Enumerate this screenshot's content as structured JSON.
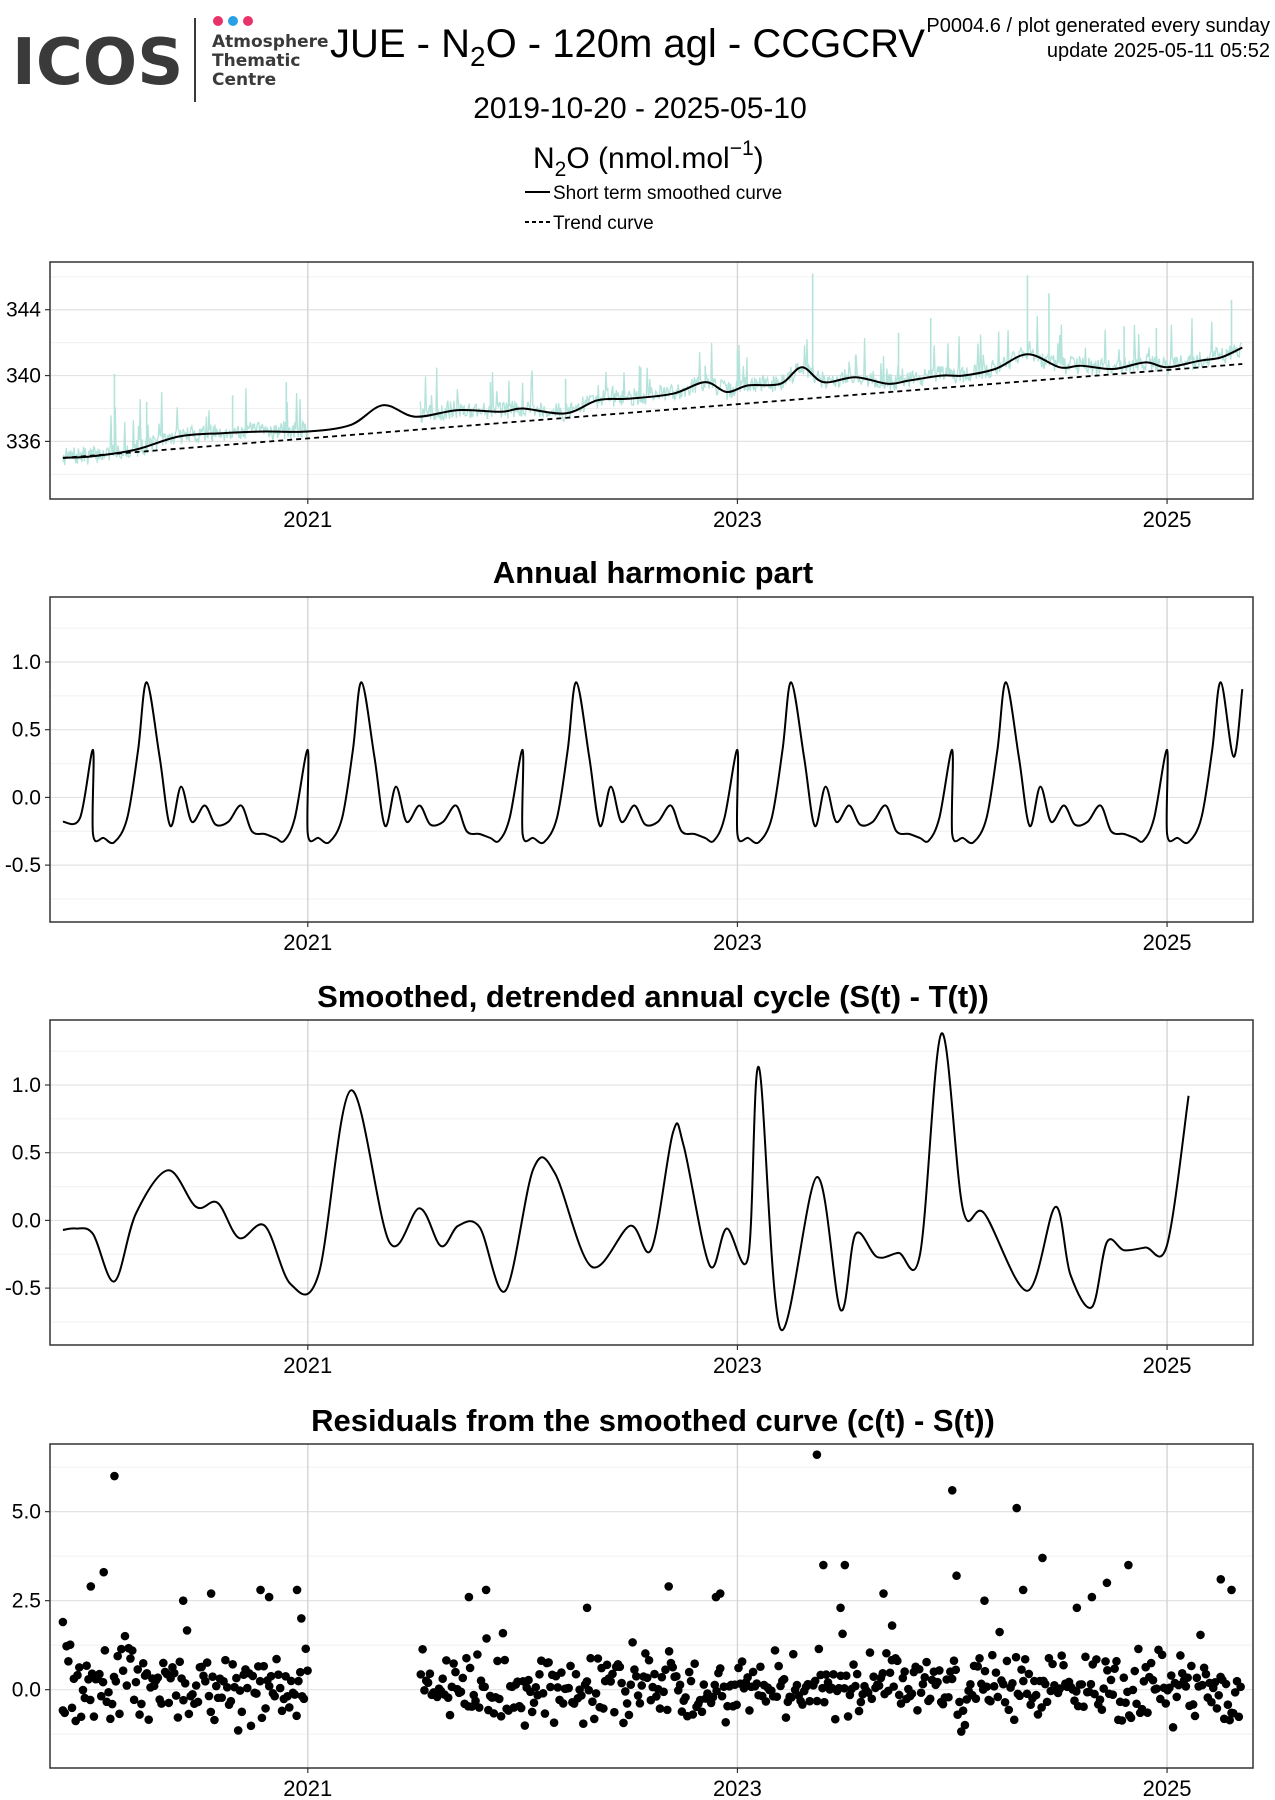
{
  "header": {
    "logo": {
      "wordmark": "ICOS",
      "unit_line1": "Atmosphere",
      "unit_line2": "Thematic",
      "unit_line3": "Centre",
      "dot_colors": [
        "#e8336a",
        "#2b9fe6",
        "#e8336a"
      ]
    },
    "title": "JUE - N2O - 120m agl - CCGCRV",
    "title_parts": [
      "JUE - N",
      "2",
      "O - 120m agl - CCGCRV"
    ],
    "product": "P0004.6 / plot generated every sunday",
    "update": "update  2025-05-11 05:52",
    "period": "2019-10-20 - 2025-05-10",
    "quantity_parts": [
      "N",
      "2",
      "O (nmol.mol",
      "−1",
      ")"
    ]
  },
  "chart_data": [
    {
      "type": "line",
      "panel": "series",
      "legend": {
        "position": "top-center",
        "entries": [
          {
            "label": "Short term smoothed curve",
            "style": "solid"
          },
          {
            "label": "Trend curve",
            "style": "dashed"
          }
        ]
      },
      "x_axis": {
        "range": [
          2019.8,
          2025.4
        ],
        "ticks": [
          2021,
          2023,
          2025
        ],
        "tick_labels": [
          "2021",
          "2023",
          "2025"
        ]
      },
      "y_axis": {
        "range": [
          332.5,
          346.9
        ],
        "ticks": [
          336,
          340,
          344
        ],
        "tick_labels": [
          "336",
          "340",
          "344"
        ]
      },
      "grid": true,
      "raw_color": "#b3e3da",
      "trend": {
        "x": [
          2019.86,
          2025.35
        ],
        "y": [
          335.0,
          340.7
        ]
      },
      "smoothed": {
        "x": [
          2019.86,
          2020.0,
          2020.2,
          2020.4,
          2020.6,
          2020.8,
          2021.0,
          2021.2,
          2021.35,
          2021.5,
          2021.7,
          2021.9,
          2022.0,
          2022.2,
          2022.35,
          2022.5,
          2022.7,
          2022.85,
          2022.95,
          2023.05,
          2023.2,
          2023.3,
          2023.4,
          2023.55,
          2023.7,
          2023.8,
          2023.95,
          2024.05,
          2024.2,
          2024.35,
          2024.5,
          2024.6,
          2024.75,
          2024.9,
          2025.0,
          2025.15,
          2025.25,
          2025.35
        ],
        "y": [
          335.0,
          335.1,
          335.5,
          336.3,
          336.5,
          336.6,
          336.6,
          337.0,
          338.2,
          337.5,
          337.9,
          337.8,
          338.0,
          337.7,
          338.5,
          338.6,
          338.9,
          339.6,
          339.0,
          339.4,
          339.5,
          340.5,
          339.6,
          339.9,
          339.5,
          339.7,
          340.0,
          340.0,
          340.4,
          341.3,
          340.5,
          340.6,
          340.4,
          340.8,
          340.5,
          340.9,
          341.1,
          341.7
        ]
      },
      "raw_spikes": {
        "x": [
          2020.1,
          2020.25,
          2020.65,
          2020.9,
          2021.85,
          2022.2,
          2022.55,
          2022.85,
          2023.0,
          2023.35,
          2023.55,
          2023.75,
          2023.9,
          2024.2,
          2024.35,
          2024.45,
          2024.8,
          2024.95,
          2025.3
        ],
        "y": [
          340.1,
          338.4,
          338.8,
          339.6,
          339.6,
          339.8,
          340.5,
          340.6,
          341.5,
          346.2,
          341.2,
          342.6,
          343.5,
          340.6,
          346.1,
          345.0,
          343.0,
          342.9,
          344.6
        ]
      }
    },
    {
      "type": "line",
      "panel": "harmonic",
      "title": "Annual harmonic part",
      "x_axis": {
        "range": [
          2019.8,
          2025.4
        ],
        "ticks": [
          2021,
          2023,
          2025
        ],
        "tick_labels": [
          "2021",
          "2023",
          "2025"
        ]
      },
      "y_axis": {
        "range": [
          -0.92,
          1.48
        ],
        "ticks": [
          1.0,
          0.5,
          0.0,
          -0.5
        ],
        "tick_labels": [
          "1.0",
          "0.5",
          "0.0",
          "-0.5"
        ]
      },
      "grid": true,
      "annual_cycle": {
        "phase": [
          0.0,
          0.05,
          0.1,
          0.16,
          0.21,
          0.25,
          0.31,
          0.36,
          0.41,
          0.46,
          0.52,
          0.57,
          0.63,
          0.69,
          0.74,
          0.8,
          0.85,
          0.89,
          0.94,
          1.0
        ],
        "value": [
          -0.27,
          -0.3,
          -0.33,
          -0.15,
          0.35,
          0.85,
          0.3,
          -0.21,
          0.08,
          -0.18,
          -0.06,
          -0.2,
          -0.18,
          -0.06,
          -0.25,
          -0.27,
          -0.3,
          -0.32,
          -0.15,
          0.35
        ]
      },
      "start_x": 2019.86,
      "end_x": 2025.35,
      "start_y": -0.18,
      "end_y": 0.8
    },
    {
      "type": "line",
      "panel": "detrended",
      "title": "Smoothed, detrended annual cycle (S(t) - T(t))",
      "x_axis": {
        "range": [
          2019.8,
          2025.4
        ],
        "ticks": [
          2021,
          2023,
          2025
        ],
        "tick_labels": [
          "2021",
          "2023",
          "2025"
        ]
      },
      "y_axis": {
        "range": [
          -0.92,
          1.48
        ],
        "ticks": [
          1.0,
          0.5,
          0.0,
          -0.5
        ],
        "tick_labels": [
          "1.0",
          "0.5",
          "0.0",
          "-0.5"
        ]
      },
      "grid": true,
      "x": [
        2019.86,
        2019.92,
        2020.0,
        2020.1,
        2020.2,
        2020.35,
        2020.48,
        2020.58,
        2020.68,
        2020.8,
        2020.92,
        2021.05,
        2021.2,
        2021.38,
        2021.52,
        2021.62,
        2021.7,
        2021.8,
        2021.92,
        2022.05,
        2022.15,
        2022.32,
        2022.5,
        2022.6,
        2022.7,
        2022.75,
        2022.87,
        2022.95,
        2023.05,
        2023.1,
        2023.2,
        2023.37,
        2023.48,
        2023.55,
        2023.65,
        2023.75,
        2023.85,
        2023.95,
        2024.05,
        2024.15,
        2024.35,
        2024.48,
        2024.55,
        2024.65,
        2024.72,
        2024.8,
        2024.9,
        2025.0,
        2025.1,
        2025.2,
        2025.35
      ],
      "y": [
        -0.07,
        -0.06,
        -0.1,
        -0.45,
        0.05,
        0.37,
        0.1,
        0.13,
        -0.13,
        -0.04,
        -0.47,
        -0.4,
        0.96,
        -0.16,
        0.09,
        -0.19,
        -0.04,
        -0.05,
        -0.52,
        0.38,
        0.35,
        -0.34,
        -0.04,
        -0.21,
        0.65,
        0.55,
        -0.33,
        -0.06,
        -0.27,
        1.13,
        -0.8,
        0.32,
        -0.66,
        -0.1,
        -0.27,
        -0.24,
        -0.25,
        1.38,
        0.08,
        0.05,
        -0.52,
        0.1,
        -0.4,
        -0.64,
        -0.16,
        -0.22,
        -0.2,
        -0.18,
        0.92,
        0.92,
        0.92
      ]
    },
    {
      "type": "scatter",
      "panel": "residuals",
      "title": "Residuals from the smoothed curve (c(t) - S(t))",
      "x_axis": {
        "range": [
          2019.8,
          2025.4
        ],
        "ticks": [
          2021,
          2023,
          2025
        ],
        "tick_labels": [
          "2021",
          "2023",
          "2025"
        ]
      },
      "y_axis": {
        "range": [
          -2.2,
          6.9
        ],
        "ticks": [
          5.0,
          2.5,
          0.0
        ],
        "tick_labels": [
          "5.0",
          "2.5",
          "0.0"
        ]
      },
      "grid": true,
      "data_gap": [
        2021.0,
        2021.52
      ],
      "outliers": {
        "x": [
          2020.1,
          2020.05,
          2019.99,
          2019.86,
          2020.42,
          2020.55,
          2020.78,
          2020.82,
          2020.95,
          2020.97,
          2021.75,
          2021.83,
          2022.3,
          2022.68,
          2022.9,
          2022.92,
          2023.37,
          2023.4,
          2023.48,
          2023.5,
          2023.68,
          2023.72,
          2024.0,
          2024.02,
          2024.15,
          2024.3,
          2024.33,
          2024.42,
          2024.58,
          2024.65,
          2024.72,
          2024.82,
          2025.25,
          2025.3
        ],
        "y": [
          6.0,
          3.3,
          2.9,
          1.9,
          2.5,
          2.7,
          2.8,
          2.6,
          2.8,
          2.0,
          2.6,
          2.8,
          2.3,
          2.9,
          2.6,
          2.7,
          6.6,
          3.5,
          2.3,
          3.5,
          2.7,
          1.8,
          5.6,
          3.2,
          2.5,
          5.1,
          2.8,
          3.7,
          2.3,
          2.6,
          3.0,
          3.5,
          3.1,
          2.8
        ]
      }
    }
  ]
}
